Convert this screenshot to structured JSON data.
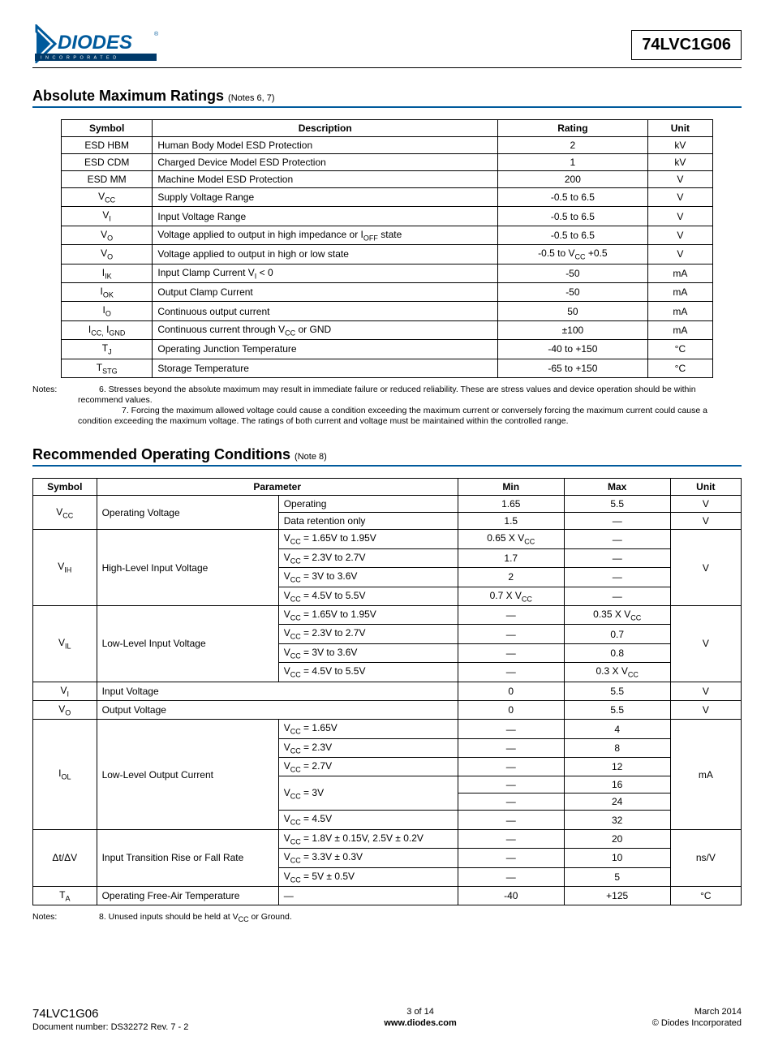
{
  "header": {
    "part_number": "74LVC1G06",
    "logo": {
      "text_main": "DIODES",
      "text_sub": "I N C O R P O R A T E D",
      "color_primary": "#005a9c",
      "color_bar": "#003a6a",
      "reg_mark": "®"
    }
  },
  "section1": {
    "title": "Absolute Maximum Ratings",
    "note_ref": "(Notes 6, 7)",
    "columns": [
      "Symbol",
      "Description",
      "Rating",
      "Unit"
    ],
    "col_widths": [
      "14%",
      "53%",
      "23%",
      "10%"
    ],
    "rows": [
      {
        "symbol": "ESD HBM",
        "desc": "Human Body Model ESD Protection",
        "rating": "2",
        "unit": "kV"
      },
      {
        "symbol": "ESD CDM",
        "desc": "Charged Device Model ESD Protection",
        "rating": "1",
        "unit": "kV"
      },
      {
        "symbol": "ESD MM",
        "desc": "Machine Model ESD Protection",
        "rating": "200",
        "unit": "V"
      },
      {
        "symbol_html": "V<span class='sub'>CC</span>",
        "desc": "Supply Voltage Range",
        "rating": "-0.5 to 6.5",
        "unit": "V"
      },
      {
        "symbol_html": "V<span class='sub'>I</span>",
        "desc": "Input Voltage Range",
        "rating": "-0.5 to 6.5",
        "unit": "V"
      },
      {
        "symbol_html": "V<span class='sub'>O</span>",
        "desc_html": "Voltage applied to output in high impedance or I<span class='sub'>OFF</span> state",
        "rating": "-0.5 to 6.5",
        "unit": "V"
      },
      {
        "symbol_html": "V<span class='sub'>O</span>",
        "desc": "Voltage applied to output in high or low state",
        "rating_html": "-0.5 to V<span class='sub'>CC</span> +0.5",
        "unit": "V"
      },
      {
        "symbol_html": "I<span class='sub'>IK</span>",
        "desc_html": "Input Clamp Current V<span class='sub'>I</span> &lt; 0",
        "rating": "-50",
        "unit": "mA"
      },
      {
        "symbol_html": "I<span class='sub'>OK</span>",
        "desc": "Output Clamp Current",
        "rating": "-50",
        "unit": "mA"
      },
      {
        "symbol_html": "I<span class='sub'>O</span>",
        "desc": "Continuous output current",
        "rating": "50",
        "unit": "mA"
      },
      {
        "symbol_html": "I<span class='sub'>CC,</span> I<span class='sub'>GND</span>",
        "desc_html": "Continuous current through V<span class='sub'>CC</span> or GND",
        "rating": "±100",
        "unit": "mA"
      },
      {
        "symbol_html": "T<span class='sub'>J</span>",
        "desc": "Operating Junction Temperature",
        "rating": "-40 to +150",
        "unit": "°C"
      },
      {
        "symbol_html": "T<span class='sub'>STG</span>",
        "desc": "Storage Temperature",
        "rating": "-65 to +150",
        "unit": "°C"
      }
    ],
    "notes": [
      "6. Stresses beyond the absolute maximum may result in immediate failure or reduced reliability. These are stress values and device operation should be within recommend values.",
      "7. Forcing the maximum allowed voltage could cause a condition exceeding the maximum current or conversely forcing the maximum current could cause a condition exceeding the maximum voltage.   The ratings of both current and voltage must be maintained within the controlled range."
    ]
  },
  "section2": {
    "title": "Recommended Operating Conditions",
    "note_ref": "(Note 8)",
    "columns": [
      "Symbol",
      "Parameter",
      "Min",
      "Max",
      "Unit"
    ],
    "col_widths": [
      "9%",
      "23%",
      "28%",
      "15%",
      "15%",
      "10%"
    ],
    "notes": [
      "8. Unused inputs should be held at V<span class='sub'>CC</span> or Ground."
    ]
  },
  "footer": {
    "left_line1": "74LVC1G06",
    "left_line2": "Document number: DS32272 Rev. 7 - 2",
    "mid_line1": "3 of 14",
    "mid_line2": "www.diodes.com",
    "right_line1": "March 2014",
    "right_line2": "© Diodes Incorporated"
  }
}
